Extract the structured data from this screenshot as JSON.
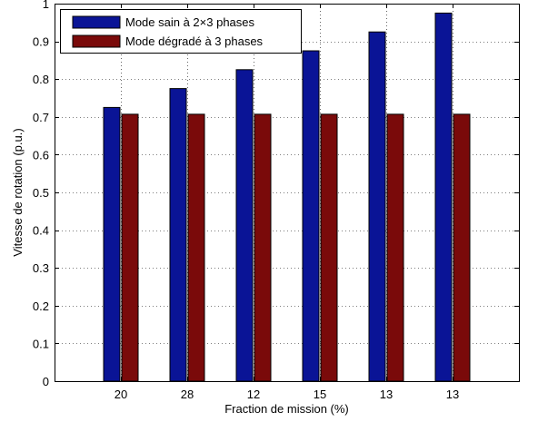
{
  "chart_data": {
    "type": "bar",
    "xlabel": "Fraction de mission (%)",
    "ylabel": "Vitesse de rotation (p.u.)",
    "categories": [
      "20",
      "28",
      "12",
      "15",
      "13",
      "13"
    ],
    "ylim": [
      0,
      1
    ],
    "yticks": [
      "0",
      "0.1",
      "0.2",
      "0.3",
      "0.4",
      "0.5",
      "0.6",
      "0.7",
      "0.8",
      "0.9",
      "1"
    ],
    "grid": true,
    "legend_position": "top-left",
    "series": [
      {
        "name": "Mode sain à 2×3 phases",
        "color": "#0a1496",
        "values": [
          0.725,
          0.775,
          0.825,
          0.875,
          0.925,
          0.975
        ]
      },
      {
        "name": "Mode dégradé à 3 phases",
        "color": "#7a0a0a",
        "values": [
          0.707,
          0.707,
          0.707,
          0.707,
          0.707,
          0.707
        ]
      }
    ]
  }
}
